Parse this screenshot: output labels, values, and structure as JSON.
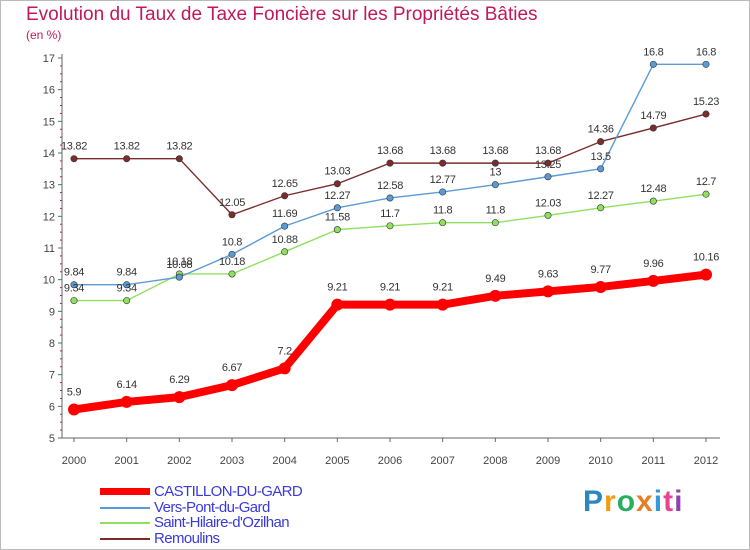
{
  "title": "Evolution du Taux de Taxe Foncière sur les Propriétés Bâties",
  "unit_label": "(en %)",
  "brand": {
    "letters": [
      "P",
      "r",
      "o",
      "x",
      "i",
      "t",
      "i"
    ],
    "colors": [
      "#2e86c1",
      "#f39c12",
      "#27ae60",
      "#e67e22",
      "#3498db",
      "#e84393",
      "#8e44ad"
    ]
  },
  "chart_data": {
    "type": "line",
    "title": "Evolution du Taux de Taxe Foncière sur les Propriétés Bâties",
    "ylabel": "(en %)",
    "xlabel": "",
    "ylim": [
      5,
      17
    ],
    "yticks": [
      "5",
      "6",
      "7",
      "8",
      "9",
      "10",
      "11",
      "12",
      "13",
      "14",
      "15",
      "16",
      "17"
    ],
    "x": [
      "2000",
      "2001",
      "2002",
      "2003",
      "2004",
      "2005",
      "2006",
      "2007",
      "2008",
      "2009",
      "2010",
      "2011",
      "2012"
    ],
    "series": [
      {
        "name": "Remoulins",
        "color": "#7b2d2d",
        "values": [
          13.82,
          13.82,
          13.82,
          12.05,
          12.65,
          13.03,
          13.68,
          13.68,
          13.68,
          13.68,
          14.36,
          14.79,
          15.23
        ],
        "labels": [
          "13.82",
          "13.82",
          "13.82",
          "12.05",
          "12.65",
          "13.03",
          "13.68",
          "13.68",
          "13.68",
          "13.68",
          "14.36",
          "14.79",
          "15.23"
        ]
      },
      {
        "name": "Saint-Hilaire-d'Ozilhan",
        "color": "#90e060",
        "values": [
          9.34,
          9.34,
          10.18,
          10.18,
          10.88,
          11.58,
          11.7,
          11.8,
          11.8,
          12.03,
          12.27,
          12.48,
          12.7
        ],
        "labels": [
          "9.34",
          "9.34",
          "10.18",
          "10.18",
          "10.88",
          "11.58",
          "11.7",
          "11.8",
          "11.8",
          "12.03",
          "12.27",
          "12.48",
          "12.7"
        ]
      },
      {
        "name": "Vers-Pont-du-Gard",
        "color": "#5b9bd5",
        "values": [
          9.84,
          9.84,
          10.08,
          10.8,
          11.69,
          12.27,
          12.58,
          12.77,
          13.0,
          13.25,
          13.5,
          16.8,
          16.8
        ],
        "labels": [
          "9.84",
          "9.84",
          "10.08",
          "10.8",
          "11.69",
          "12.27",
          "12.58",
          "12.77",
          "13",
          "13.25",
          "13.5",
          "16.8",
          "16.8"
        ]
      },
      {
        "name": "CASTILLON-DU-GARD",
        "color": "#ff0000",
        "values": [
          5.9,
          6.14,
          6.29,
          6.67,
          7.2,
          9.21,
          9.21,
          9.21,
          9.49,
          9.63,
          9.77,
          9.96,
          10.16
        ],
        "labels": [
          "5.9",
          "6.14",
          "6.29",
          "6.67",
          "7.2",
          "9.21",
          "9.21",
          "9.21",
          "9.49",
          "9.63",
          "9.77",
          "9.96",
          "10.16"
        ]
      }
    ],
    "legend_order": [
      "CASTILLON-DU-GARD",
      "Vers-Pont-du-Gard",
      "Saint-Hilaire-d'Ozilhan",
      "Remoulins"
    ],
    "legend_position": "bottom-left",
    "grid": false
  }
}
